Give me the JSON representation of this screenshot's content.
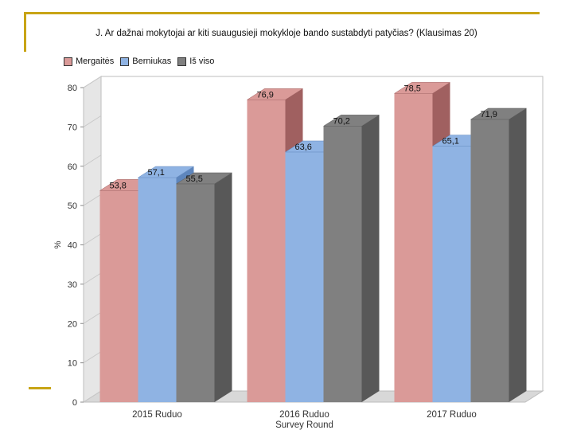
{
  "chart_data": {
    "type": "bar",
    "title": "J. Ar dažnai mokytojai ar kiti suaugusieji mokykloje bando sustabdyti patyčias? (Klausimas 20)",
    "xlabel": "Survey Round",
    "ylabel": "%",
    "ylim": [
      0,
      80
    ],
    "yticks": [
      0,
      10,
      20,
      30,
      40,
      50,
      60,
      70,
      80
    ],
    "ytick_labels": [
      "0",
      "10",
      "20",
      "30",
      "40",
      "50",
      "60",
      "70",
      "80"
    ],
    "categories": [
      "2015 Ruduo",
      "2016 Ruduo",
      "2017 Ruduo"
    ],
    "series": [
      {
        "name": "Mergaitės",
        "values": [
          53.8,
          76.9,
          78.5
        ],
        "labels": [
          "53,8",
          "76,9",
          "78,5"
        ],
        "color": "#da9a98",
        "side": "#a06060"
      },
      {
        "name": "Berniukas",
        "values": [
          57.1,
          63.6,
          65.1
        ],
        "labels": [
          "57,1",
          "63,6",
          "65,1"
        ],
        "color": "#8fb3e3",
        "side": "#5e86bd"
      },
      {
        "name": "Iš viso",
        "values": [
          55.5,
          70.2,
          71.9
        ],
        "labels": [
          "55,5",
          "70,2",
          "71,9"
        ],
        "color": "#808080",
        "side": "#585858"
      }
    ],
    "legend_position": "top-left",
    "grid": false
  },
  "colors": {
    "frame_accent": "#c8a415",
    "wall": "#e6e6e6",
    "floor": "#d8d8d8"
  }
}
